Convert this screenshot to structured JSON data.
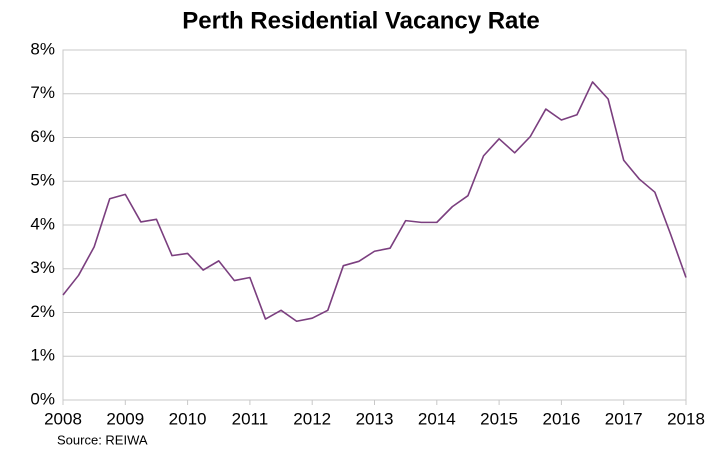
{
  "chart_data": {
    "type": "line",
    "title": "Perth Residential Vacancy Rate",
    "source": "Source: REIWA",
    "x": [
      2008,
      2008.25,
      2008.5,
      2008.75,
      2009,
      2009.25,
      2009.5,
      2009.75,
      2010,
      2010.25,
      2010.5,
      2010.75,
      2011,
      2011.25,
      2011.5,
      2011.75,
      2012,
      2012.25,
      2012.5,
      2012.75,
      2013,
      2013.25,
      2013.5,
      2013.75,
      2014,
      2014.25,
      2014.5,
      2014.75,
      2015,
      2015.25,
      2015.5,
      2015.75,
      2016,
      2016.25,
      2016.5,
      2016.75,
      2017,
      2017.25,
      2017.5,
      2017.75,
      2018
    ],
    "values": [
      2.4,
      2.85,
      3.5,
      4.6,
      4.7,
      4.07,
      4.13,
      3.3,
      3.35,
      2.97,
      3.18,
      2.73,
      2.8,
      1.85,
      2.05,
      1.8,
      1.87,
      2.05,
      3.07,
      3.17,
      3.4,
      3.47,
      4.1,
      4.06,
      4.06,
      4.42,
      4.67,
      5.58,
      5.97,
      5.65,
      6.02,
      6.65,
      6.4,
      6.52,
      7.27,
      6.88,
      5.48,
      5.05,
      4.75,
      3.8,
      2.8
    ],
    "color": "#7b3f7f",
    "xlim": [
      2008,
      2018
    ],
    "xticks": [
      2008,
      2009,
      2010,
      2011,
      2012,
      2013,
      2014,
      2015,
      2016,
      2017,
      2018
    ],
    "ylim": [
      0,
      8
    ],
    "yticks": [
      {
        "value": 0,
        "label": "0%"
      },
      {
        "value": 1,
        "label": "1%"
      },
      {
        "value": 2,
        "label": "2%"
      },
      {
        "value": 3,
        "label": "3%"
      },
      {
        "value": 4,
        "label": "4%"
      },
      {
        "value": 5,
        "label": "5%"
      },
      {
        "value": 6,
        "label": "6%"
      },
      {
        "value": 7,
        "label": "7%"
      },
      {
        "value": 8,
        "label": "8%"
      }
    ],
    "grid": true
  }
}
